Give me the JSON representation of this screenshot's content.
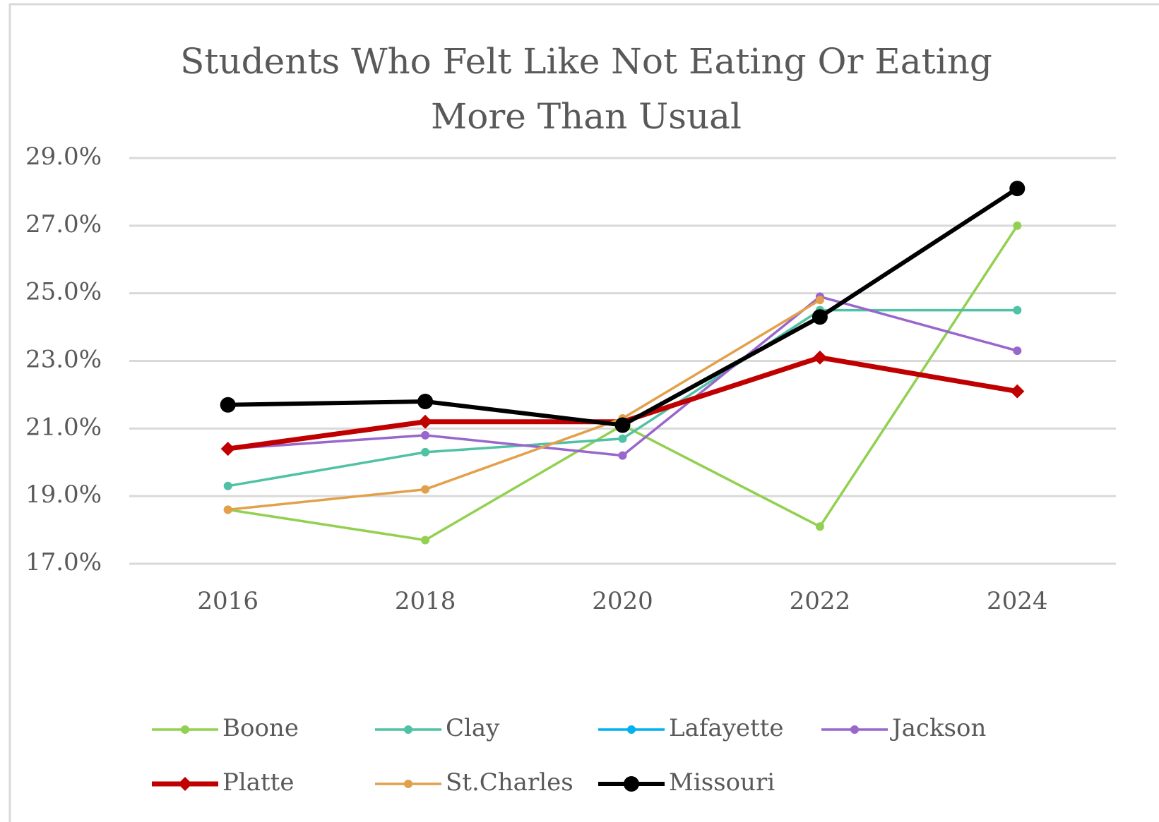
{
  "chart_data": {
    "type": "line",
    "title": "Students Who Felt Like Not Eating Or Eating More Than Usual",
    "categories": [
      "2016",
      "2018",
      "2020",
      "2022",
      "2024"
    ],
    "series": [
      {
        "name": "Boone",
        "color": "#92d050",
        "marker": "circle",
        "values": [
          18.6,
          17.7,
          21.1,
          18.1,
          27.0
        ]
      },
      {
        "name": "Clay",
        "color": "#4fc1a5",
        "marker": "circle",
        "values": [
          19.3,
          20.3,
          20.7,
          24.5,
          24.5
        ]
      },
      {
        "name": "Lafayette",
        "color": "#00b0f0",
        "marker": "circle",
        "values": [
          null,
          null,
          null,
          null,
          null
        ]
      },
      {
        "name": "Jackson",
        "color": "#9966cc",
        "marker": "circle",
        "values": [
          20.4,
          20.8,
          20.2,
          24.9,
          23.3
        ]
      },
      {
        "name": "Platte",
        "color": "#c00000",
        "marker": "diamond",
        "values": [
          20.4,
          21.2,
          21.2,
          23.1,
          22.1
        ]
      },
      {
        "name": "St.Charles",
        "color": "#e3a04a",
        "marker": "circle",
        "values": [
          18.6,
          19.2,
          21.3,
          24.8,
          null
        ]
      },
      {
        "name": "Missouri",
        "color": "#000000",
        "marker": "circle",
        "values": [
          21.7,
          21.8,
          21.1,
          24.3,
          28.1
        ]
      }
    ],
    "ylim": [
      17,
      29
    ],
    "yticks": [
      {
        "value": 17,
        "label": "17.0%"
      },
      {
        "value": 19,
        "label": "19.0%"
      },
      {
        "value": 21,
        "label": "21.0%"
      },
      {
        "value": 23,
        "label": "23.0%"
      },
      {
        "value": 25,
        "label": "25.0%"
      },
      {
        "value": 27,
        "label": "27.0%"
      },
      {
        "value": 29,
        "label": "29.0%"
      }
    ],
    "grid": true,
    "legend": "bottom"
  }
}
